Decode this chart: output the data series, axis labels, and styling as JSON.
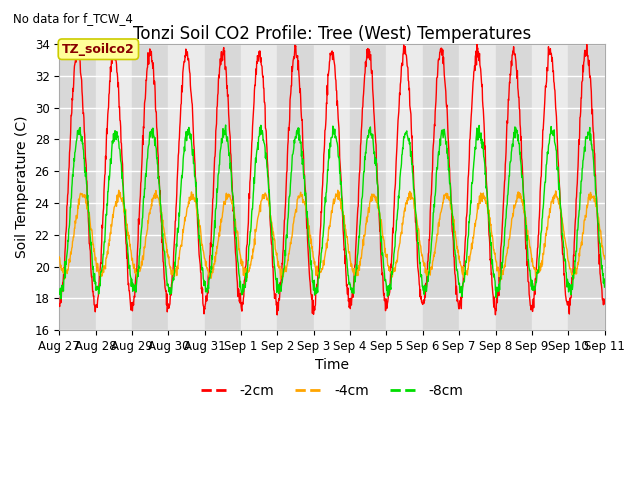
{
  "title": "Tonzi Soil CO2 Profile: Tree (West) Temperatures",
  "subtitle": "No data for f_TCW_4",
  "ylabel": "Soil Temperature (C)",
  "xlabel": "Time",
  "ylim": [
    16,
    34
  ],
  "background_color": "#ffffff",
  "plot_bg_color": "#e8e8e8",
  "plot_bg_light": "#f0f0f0",
  "grid_color": "#d0d0d0",
  "series": [
    {
      "label": "-2cm",
      "color": "#ff0000"
    },
    {
      "label": "-4cm",
      "color": "#ffa500"
    },
    {
      "label": "-8cm",
      "color": "#00dd00"
    }
  ],
  "xtick_labels": [
    "Aug 27",
    "Aug 28",
    "Aug 29",
    "Aug 30",
    "Aug 31",
    "Sep 1",
    "Sep 2",
    "Sep 3",
    "Sep 4",
    "Sep 5",
    "Sep 6",
    "Sep 7",
    "Sep 8",
    "Sep 9",
    "Sep 10",
    "Sep 11"
  ],
  "xtick_positions": [
    0,
    1,
    2,
    3,
    4,
    5,
    6,
    7,
    8,
    9,
    10,
    11,
    12,
    13,
    14,
    15
  ],
  "legend_box_color": "#ffff99",
  "legend_box_edge": "#cccc00",
  "annotation_text": "TZ_soilco2",
  "title_fontsize": 12,
  "axis_label_fontsize": 10,
  "tick_fontsize": 8.5,
  "legend_fontsize": 10,
  "red_base": 25.5,
  "red_amp": 8.0,
  "red_phase": 1.5708,
  "orange_base": 22.0,
  "orange_amp": 2.5,
  "orange_phase": 2.5,
  "green_base": 23.5,
  "green_amp": 5.0,
  "green_phase": 1.9
}
